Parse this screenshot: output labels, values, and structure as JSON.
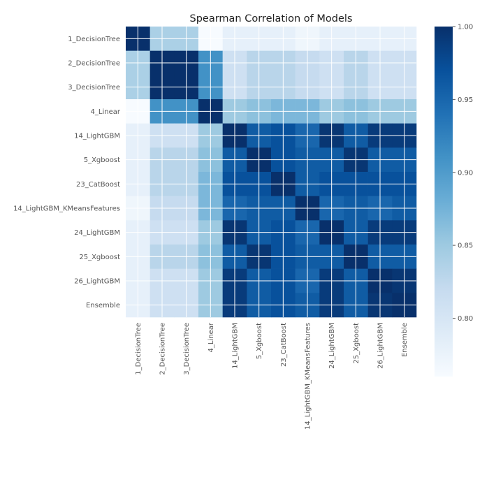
{
  "chart_data": {
    "type": "heatmap",
    "title": "Spearman Correlation of Models",
    "xlabel": "",
    "ylabel": "",
    "labels": [
      "1_DecisionTree",
      "2_DecisionTree",
      "3_DecisionTree",
      "4_Linear",
      "14_LightGBM",
      "5_Xgboost",
      "23_CatBoost",
      "14_LightGBM_KMeansFeatures",
      "24_LightGBM",
      "25_Xgboost",
      "26_LightGBM",
      "Ensemble"
    ],
    "grid": true,
    "colormap": "Blues",
    "color_range": [
      0.76,
      1.0
    ],
    "colorbar_ticks": [
      "1.00",
      "0.95",
      "0.90",
      "0.85",
      "0.80"
    ],
    "colorbar_tick_values": [
      1.0,
      0.95,
      0.9,
      0.85,
      0.8
    ],
    "matrix": [
      [
        1.0,
        0.84,
        0.84,
        0.76,
        0.78,
        0.78,
        0.78,
        0.77,
        0.78,
        0.78,
        0.78,
        0.78
      ],
      [
        0.84,
        1.0,
        1.0,
        0.91,
        0.81,
        0.83,
        0.83,
        0.82,
        0.81,
        0.83,
        0.81,
        0.81
      ],
      [
        0.84,
        1.0,
        1.0,
        0.91,
        0.81,
        0.83,
        0.83,
        0.82,
        0.81,
        0.83,
        0.81,
        0.81
      ],
      [
        0.76,
        0.91,
        0.91,
        1.0,
        0.85,
        0.86,
        0.87,
        0.87,
        0.85,
        0.86,
        0.85,
        0.85
      ],
      [
        0.78,
        0.81,
        0.81,
        0.85,
        1.0,
        0.96,
        0.97,
        0.95,
        0.995,
        0.96,
        0.99,
        0.99
      ],
      [
        0.78,
        0.83,
        0.83,
        0.86,
        0.96,
        1.0,
        0.97,
        0.96,
        0.96,
        0.995,
        0.96,
        0.96
      ],
      [
        0.78,
        0.83,
        0.83,
        0.87,
        0.97,
        0.97,
        1.0,
        0.96,
        0.97,
        0.97,
        0.97,
        0.97
      ],
      [
        0.77,
        0.82,
        0.82,
        0.87,
        0.95,
        0.96,
        0.96,
        1.0,
        0.95,
        0.96,
        0.95,
        0.96
      ],
      [
        0.78,
        0.81,
        0.81,
        0.85,
        0.995,
        0.96,
        0.97,
        0.95,
        1.0,
        0.96,
        0.99,
        0.99
      ],
      [
        0.78,
        0.83,
        0.83,
        0.86,
        0.96,
        0.995,
        0.97,
        0.96,
        0.96,
        1.0,
        0.96,
        0.96
      ],
      [
        0.78,
        0.81,
        0.81,
        0.85,
        0.99,
        0.96,
        0.97,
        0.95,
        0.99,
        0.96,
        1.0,
        0.995
      ],
      [
        0.78,
        0.81,
        0.81,
        0.85,
        0.99,
        0.96,
        0.97,
        0.96,
        0.99,
        0.96,
        0.995,
        1.0
      ]
    ]
  }
}
